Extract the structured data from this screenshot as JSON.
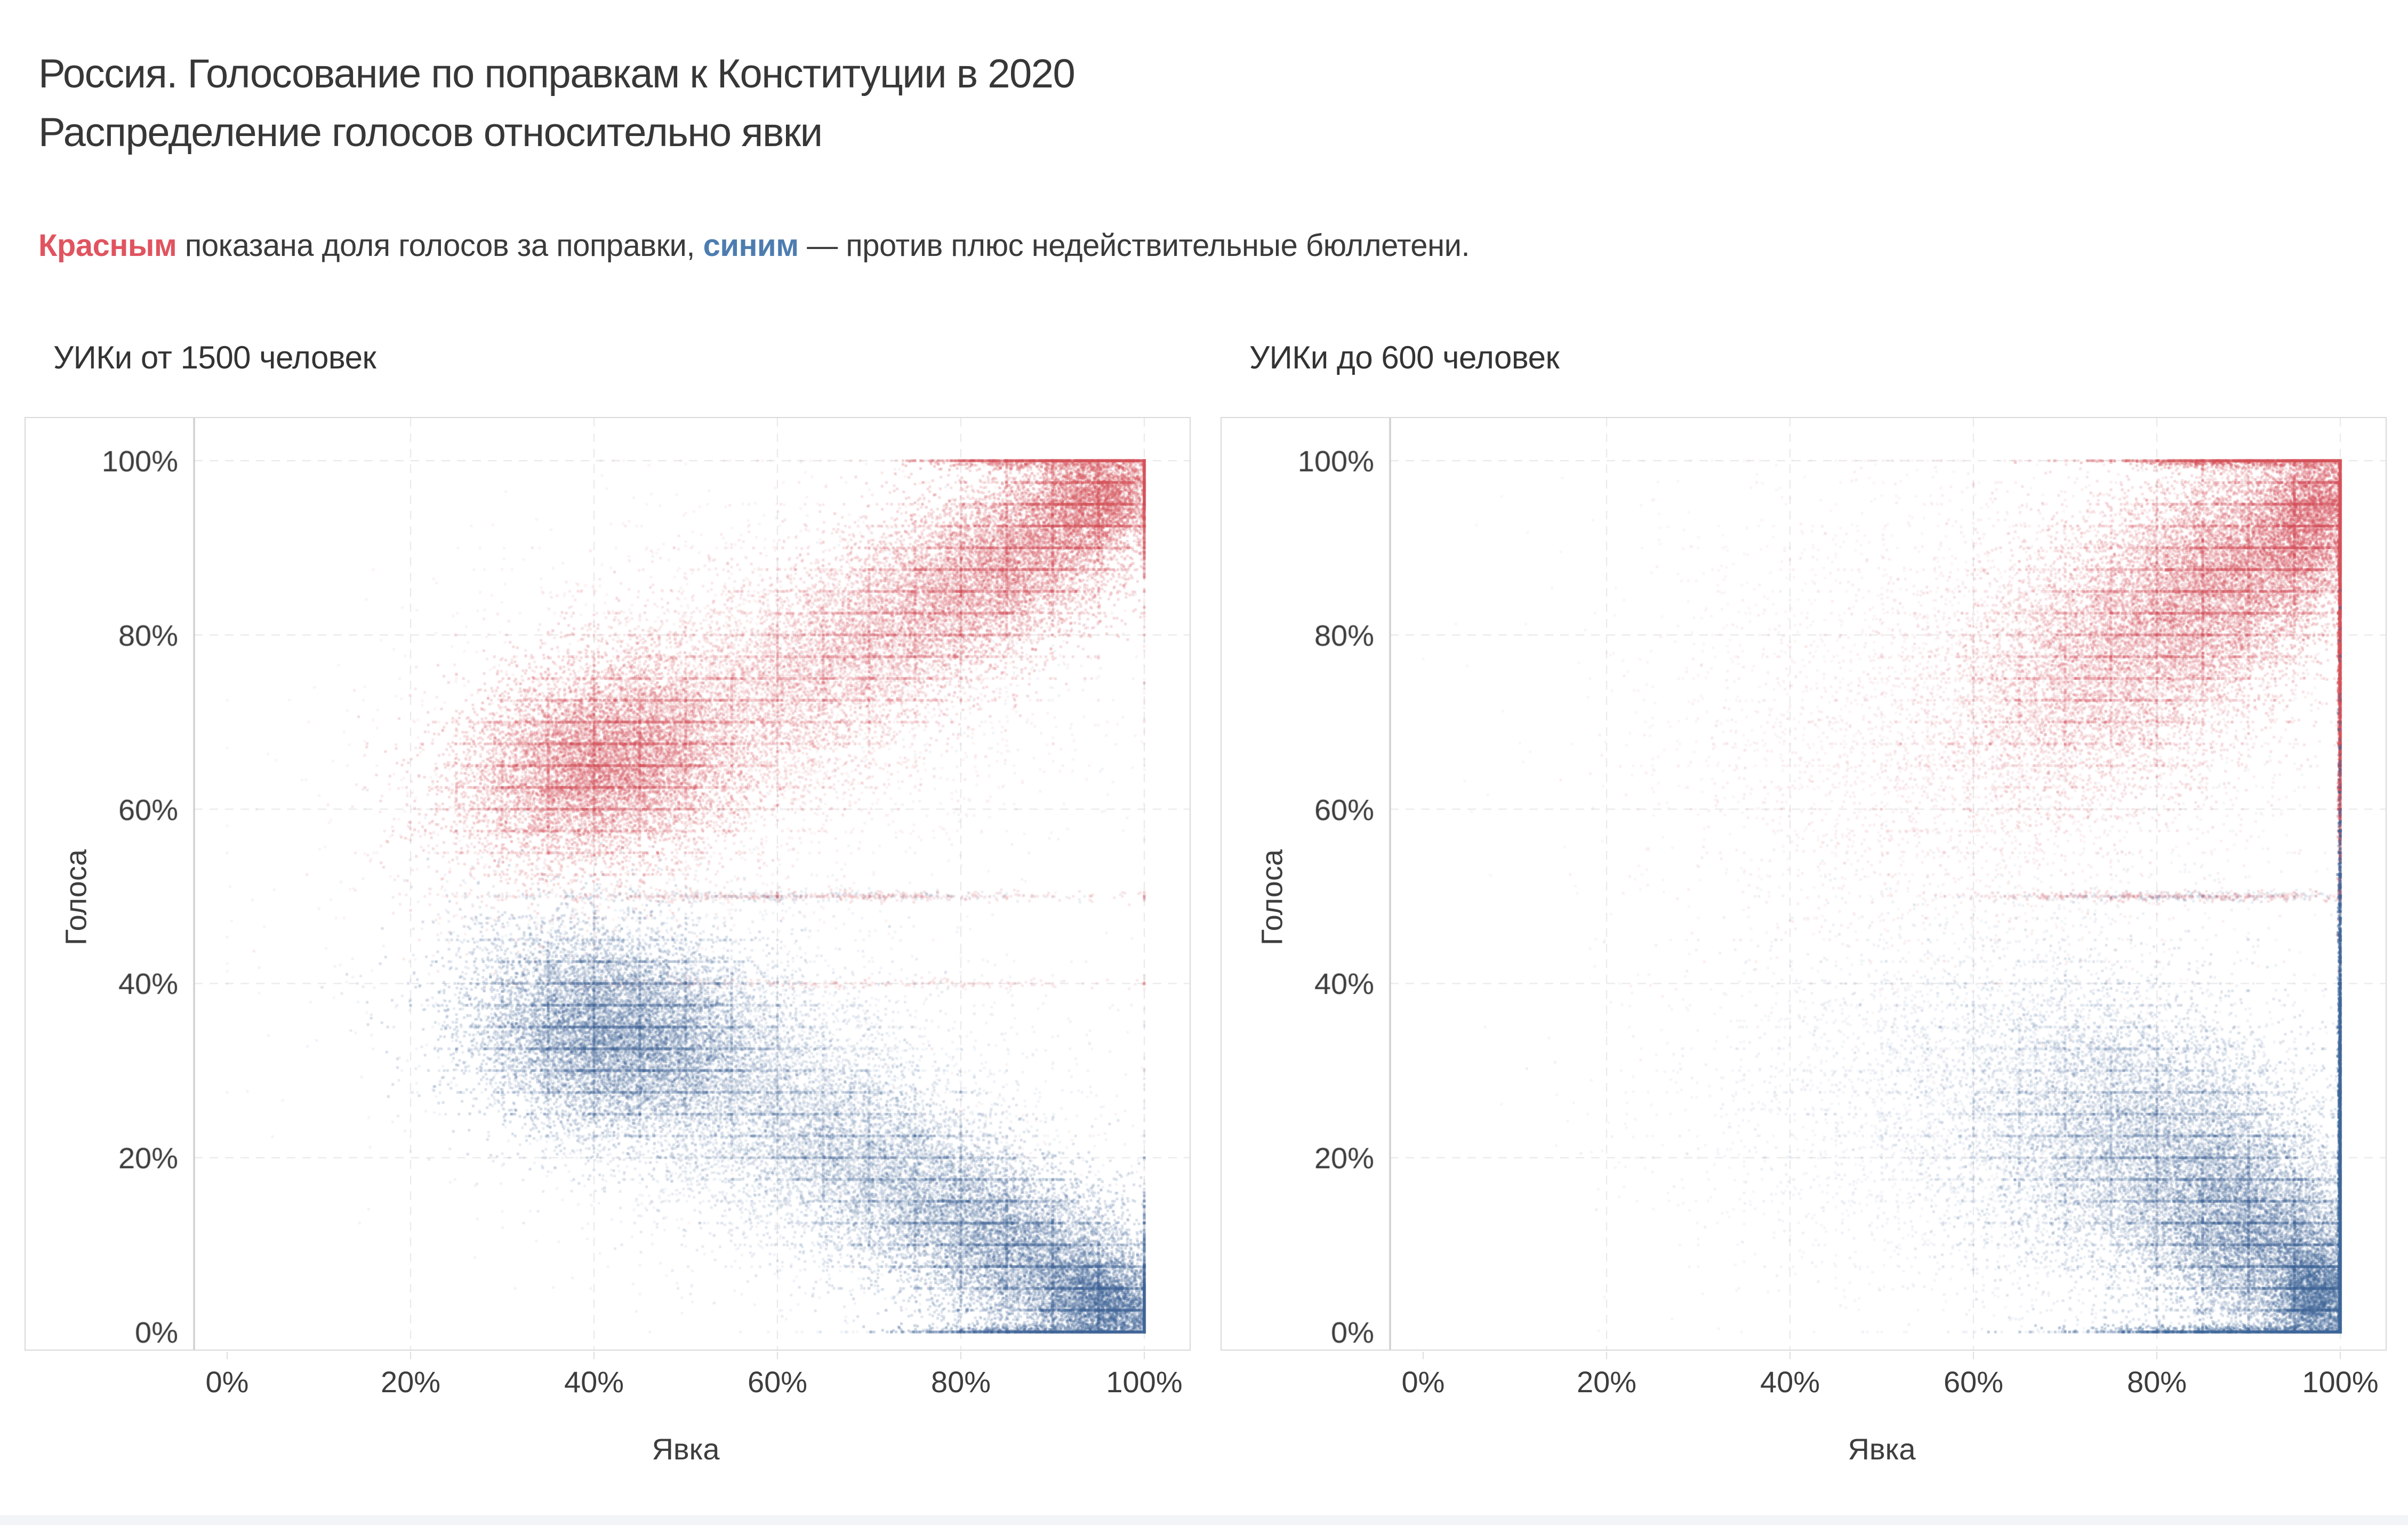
{
  "header": {
    "title_line1": "Россия. Голосование по поправкам к Конституции в 2020",
    "title_line2": "Распределение голосов относительно явки",
    "subtitle": {
      "red_word": "Красным",
      "mid": " показана доля голосов за поправки, ",
      "blue_word": "синим",
      "tail": " — против плюс недействительные бюллетени."
    }
  },
  "colors": {
    "accent_red_text": "#e0545f",
    "accent_blue_text": "#4d7cb0",
    "point_red": "#d4525b",
    "point_blue": "#3f6698",
    "axis_line": "#c9c9c9",
    "gridline": "#e7e7e7",
    "panel_border": "#d9d9d9",
    "tick_text": "#3d3d3d",
    "title_text": "#373737"
  },
  "chart_data": [
    {
      "type": "scatter",
      "title": "УИКи от 1500 человек",
      "xlabel": "Явка",
      "ylabel": "Голоса",
      "xlim": [
        0,
        100
      ],
      "ylim": [
        0,
        100
      ],
      "grid": "dashed",
      "legend": "none",
      "x_ticks": {
        "values": [
          0,
          20,
          40,
          60,
          80,
          100
        ],
        "labels": [
          "0%",
          "20%",
          "40%",
          "60%",
          "80%",
          "100%"
        ]
      },
      "y_ticks": {
        "values": [
          0,
          20,
          40,
          60,
          80,
          100
        ],
        "labels": [
          "0%",
          "20%",
          "40%",
          "60%",
          "80%",
          "100%"
        ]
      },
      "units": "percent",
      "striping": {
        "prob": 0.18,
        "step_y": 2.5,
        "prob_x": 0.05,
        "step_x": 5
      },
      "series": [
        {
          "name": "доля голосов за поправки",
          "color": "#d4525b",
          "clusters": [
            {
              "cx": 41,
              "cy": 65.5,
              "sx": 7.5,
              "sy": 5.5,
              "rho": 0.2,
              "n": 10000,
              "alpha": 0.2
            },
            {
              "cx": 50,
              "cy": 69,
              "sx": 12,
              "sy": 9,
              "rho": 0.45,
              "n": 5000,
              "alpha": 0.12
            },
            {
              "cx": 70,
              "cy": 79,
              "sx": 9,
              "sy": 6.5,
              "rho": 0.5,
              "n": 5200,
              "alpha": 0.16
            },
            {
              "cx": 86,
              "cy": 89,
              "sx": 8,
              "sy": 6,
              "rho": 0.5,
              "n": 8000,
              "alpha": 0.2
            },
            {
              "cx": 95,
              "cy": 96,
              "sx": 4,
              "sy": 3.2,
              "rho": 0.3,
              "n": 3200,
              "alpha": 0.28
            },
            {
              "cx": 60,
              "cy": 73,
              "sx": 20,
              "sy": 13,
              "rho": 0.35,
              "n": 2600,
              "alpha": 0.07
            },
            {
              "cx": 65,
              "cy": 50,
              "sx": 16,
              "sy": 0.3,
              "rho": 0,
              "n": 450,
              "alpha": 0.14
            },
            {
              "cx": 65,
              "cy": 40,
              "sx": 18,
              "sy": 0.3,
              "rho": 0,
              "n": 260,
              "alpha": 0.12
            },
            {
              "cx": 88,
              "cy": 100,
              "sx": 6,
              "sy": 0.5,
              "rho": 0,
              "n": 700,
              "alpha": 0.28
            },
            {
              "cx": 80,
              "cy": 22,
              "sx": 13,
              "sy": 10,
              "rho": 0,
              "n": 220,
              "alpha": 0.07
            }
          ]
        },
        {
          "name": "против плюс недействительные бюллетени",
          "color": "#3f6698",
          "clusters": [
            {
              "cx": 42,
              "cy": 34.5,
              "sx": 7.5,
              "sy": 5.5,
              "rho": -0.15,
              "n": 10000,
              "alpha": 0.2
            },
            {
              "cx": 52,
              "cy": 30,
              "sx": 12,
              "sy": 8.5,
              "rho": -0.4,
              "n": 5000,
              "alpha": 0.12
            },
            {
              "cx": 71,
              "cy": 19,
              "sx": 9,
              "sy": 6.5,
              "rho": -0.5,
              "n": 5200,
              "alpha": 0.16
            },
            {
              "cx": 87,
              "cy": 9,
              "sx": 8,
              "sy": 5.5,
              "rho": -0.45,
              "n": 8000,
              "alpha": 0.2
            },
            {
              "cx": 96,
              "cy": 3,
              "sx": 3.5,
              "sy": 2.8,
              "rho": -0.2,
              "n": 3200,
              "alpha": 0.28
            },
            {
              "cx": 60,
              "cy": 27,
              "sx": 19,
              "sy": 12,
              "rho": -0.35,
              "n": 2600,
              "alpha": 0.07
            },
            {
              "cx": 60,
              "cy": 50,
              "sx": 15,
              "sy": 0.3,
              "rho": 0,
              "n": 260,
              "alpha": 0.1
            },
            {
              "cx": 88,
              "cy": 0,
              "sx": 7,
              "sy": 0.5,
              "rho": 0,
              "n": 700,
              "alpha": 0.28
            },
            {
              "cx": 80,
              "cy": 75,
              "sx": 12,
              "sy": 10,
              "rho": 0,
              "n": 220,
              "alpha": 0.07
            }
          ]
        }
      ]
    },
    {
      "type": "scatter",
      "title": "УИКи до 600 человек",
      "xlabel": "Явка",
      "ylabel": "Голоса",
      "xlim": [
        0,
        100
      ],
      "ylim": [
        0,
        100
      ],
      "grid": "dashed",
      "legend": "none",
      "x_ticks": {
        "values": [
          0,
          20,
          40,
          60,
          80,
          100
        ],
        "labels": [
          "0%",
          "20%",
          "40%",
          "60%",
          "80%",
          "100%"
        ]
      },
      "y_ticks": {
        "values": [
          0,
          20,
          40,
          60,
          80,
          100
        ],
        "labels": [
          "0%",
          "20%",
          "40%",
          "60%",
          "80%",
          "100%"
        ]
      },
      "units": "percent",
      "striping": {
        "prob": 0.18,
        "step_y": 2.5,
        "prob_x": 0.05,
        "step_x": 5
      },
      "series": [
        {
          "name": "доля голосов за поправки",
          "color": "#d4525b",
          "clusters": [
            {
              "cx": 77,
              "cy": 79,
              "sx": 9,
              "sy": 8,
              "rho": 0.35,
              "n": 8000,
              "alpha": 0.16
            },
            {
              "cx": 89,
              "cy": 88,
              "sx": 7,
              "sy": 6.5,
              "rho": 0.35,
              "n": 8000,
              "alpha": 0.2
            },
            {
              "cx": 97,
              "cy": 94,
              "sx": 3,
              "sy": 4.5,
              "rho": 0.2,
              "n": 3600,
              "alpha": 0.26
            },
            {
              "cx": 68,
              "cy": 72,
              "sx": 16,
              "sy": 13,
              "rho": 0.35,
              "n": 4200,
              "alpha": 0.09
            },
            {
              "cx": 48,
              "cy": 74,
              "sx": 15,
              "sy": 14,
              "rho": 0.1,
              "n": 1400,
              "alpha": 0.06
            },
            {
              "cx": 82,
              "cy": 50,
              "sx": 12,
              "sy": 0.3,
              "rho": 0,
              "n": 380,
              "alpha": 0.16
            },
            {
              "cx": 90,
              "cy": 100,
              "sx": 7,
              "sy": 0.4,
              "rho": 0,
              "n": 900,
              "alpha": 0.3
            },
            {
              "cx": 100,
              "cy": 80,
              "sx": 0.1,
              "sy": 14,
              "rho": 0,
              "n": 2400,
              "alpha": 0.4
            },
            {
              "cx": 75,
              "cy": 30,
              "sx": 14,
              "sy": 12,
              "rho": 0,
              "n": 300,
              "alpha": 0.06
            }
          ]
        },
        {
          "name": "против плюс недействительные бюллетени",
          "color": "#3f6698",
          "clusters": [
            {
              "cx": 80,
              "cy": 21,
              "sx": 10,
              "sy": 8,
              "rho": -0.25,
              "n": 8000,
              "alpha": 0.16
            },
            {
              "cx": 91,
              "cy": 11,
              "sx": 6.5,
              "sy": 6,
              "rho": -0.3,
              "n": 8000,
              "alpha": 0.2
            },
            {
              "cx": 97.5,
              "cy": 4,
              "sx": 2.5,
              "sy": 3.5,
              "rho": 0,
              "n": 3600,
              "alpha": 0.26
            },
            {
              "cx": 70,
              "cy": 25,
              "sx": 15,
              "sy": 11,
              "rho": -0.2,
              "n": 4200,
              "alpha": 0.09
            },
            {
              "cx": 52,
              "cy": 25,
              "sx": 14,
              "sy": 11,
              "rho": 0,
              "n": 1400,
              "alpha": 0.06
            },
            {
              "cx": 85,
              "cy": 50,
              "sx": 10,
              "sy": 0.3,
              "rho": 0,
              "n": 240,
              "alpha": 0.1
            },
            {
              "cx": 88,
              "cy": 0,
              "sx": 8,
              "sy": 0.4,
              "rho": 0,
              "n": 900,
              "alpha": 0.3
            },
            {
              "cx": 100,
              "cy": 18,
              "sx": 0.1,
              "sy": 20,
              "rho": 0,
              "n": 3400,
              "alpha": 0.4
            },
            {
              "cx": 78,
              "cy": 65,
              "sx": 13,
              "sy": 12,
              "rho": 0,
              "n": 300,
              "alpha": 0.06
            }
          ]
        }
      ]
    }
  ]
}
